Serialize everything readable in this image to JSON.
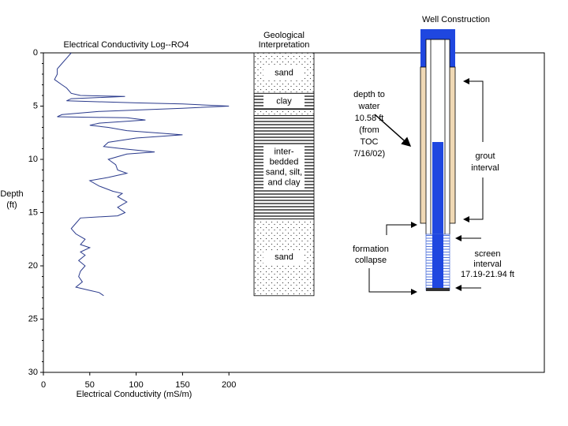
{
  "chart_data": {
    "type": "line",
    "title": "Electrical Conductivity Log--RO4",
    "xlabel": "Electrical Conductivity (mS/m)",
    "ylabel": [
      "Depth",
      "(ft)"
    ],
    "xlim": [
      0,
      540
    ],
    "ylim": [
      0,
      30
    ],
    "xticks": [
      0,
      50,
      100,
      150,
      200
    ],
    "yticks": [
      0,
      5,
      10,
      15,
      20,
      25,
      30
    ],
    "yminorticks": [
      1,
      2,
      3,
      4,
      6,
      7,
      8,
      9,
      11,
      12,
      13,
      14,
      16,
      17,
      18,
      19,
      21,
      22,
      23,
      24,
      26,
      27,
      28,
      29
    ],
    "series": [
      {
        "color": "#2a3a8c",
        "x": [
          30,
          25,
          20,
          15,
          15,
          12,
          20,
          25,
          30,
          40,
          88,
          30,
          25,
          100,
          150,
          200,
          150,
          60,
          20,
          15,
          90,
          110,
          60,
          50,
          70,
          90,
          150,
          100,
          70,
          65,
          85,
          120,
          90,
          70,
          78,
          80,
          90,
          70,
          50,
          60,
          75,
          85,
          80,
          90,
          80,
          88,
          80,
          40,
          35,
          30,
          35,
          45,
          40,
          50,
          40,
          45,
          38,
          45,
          40,
          38,
          42,
          35,
          50,
          60,
          65
        ],
        "y": [
          0,
          0.5,
          1,
          1.5,
          2,
          2.5,
          3,
          3.3,
          3.8,
          4,
          4.1,
          4.3,
          4.5,
          4.7,
          4.8,
          5,
          5.2,
          5.5,
          5.8,
          6,
          6.1,
          6.3,
          6.6,
          6.8,
          7,
          7.3,
          7.7,
          8,
          8.4,
          8.8,
          9,
          9.3,
          9.5,
          10,
          10.5,
          11,
          11.3,
          11.7,
          12,
          12.5,
          13,
          13.2,
          13.5,
          14,
          14.5,
          15,
          15.3,
          15.5,
          16,
          16.5,
          17,
          17.5,
          18,
          18.3,
          18.7,
          19,
          19.5,
          20,
          20.5,
          21,
          21.5,
          22,
          22.3,
          22.5,
          22.8
        ]
      }
    ]
  },
  "geology": {
    "title": [
      "Geological",
      "Interpretation"
    ],
    "layers": [
      {
        "top": 0,
        "bottom": 3.8,
        "pattern": "dots",
        "label": [
          "sand"
        ]
      },
      {
        "top": 3.8,
        "bottom": 5.3,
        "pattern": "lines",
        "label": [
          "clay"
        ]
      },
      {
        "top": 5.3,
        "bottom": 5.9,
        "pattern": "dots"
      },
      {
        "top": 5.9,
        "bottom": 15.6,
        "pattern": "lines",
        "label": [
          "inter-",
          "bedded",
          "sand, silt,",
          "and clay"
        ]
      },
      {
        "top": 15.6,
        "bottom": 22.8,
        "pattern": "dots",
        "label": [
          "sand"
        ]
      }
    ]
  },
  "well": {
    "title": "Well Construction",
    "water_note": [
      "depth to",
      "water",
      "10.58 ft",
      "(from",
      "TOC",
      "7/16/02)"
    ],
    "grout_note": [
      "grout",
      "interval"
    ],
    "collapse_note": [
      "formation",
      "collapse"
    ],
    "screen_note": [
      "screen",
      "interval",
      "17.19-21.94 ft"
    ]
  }
}
